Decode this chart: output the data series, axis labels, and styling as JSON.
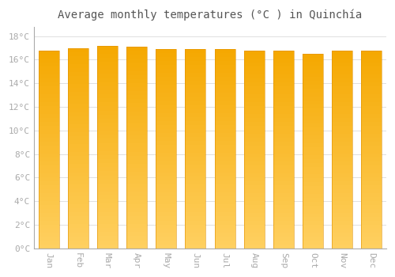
{
  "title": "Average monthly temperatures (°C ) in Quinchía",
  "months": [
    "Jan",
    "Feb",
    "Mar",
    "Apr",
    "May",
    "Jun",
    "Jul",
    "Aug",
    "Sep",
    "Oct",
    "Nov",
    "Dec"
  ],
  "values": [
    16.8,
    17.0,
    17.2,
    17.1,
    16.9,
    16.9,
    16.9,
    16.8,
    16.8,
    16.5,
    16.8,
    16.8
  ],
  "bar_color_top": "#F5A800",
  "bar_color_bottom": "#FFD060",
  "background_color": "#ffffff",
  "grid_color": "#e0e0e0",
  "yticks": [
    0,
    2,
    4,
    6,
    8,
    10,
    12,
    14,
    16,
    18
  ],
  "ylim": [
    0,
    18.8
  ],
  "title_fontsize": 10,
  "tick_fontsize": 8,
  "tick_color": "#aaaaaa",
  "title_color": "#555555",
  "spine_color": "#aaaaaa",
  "bar_width": 0.7,
  "num_gradient_steps": 50
}
